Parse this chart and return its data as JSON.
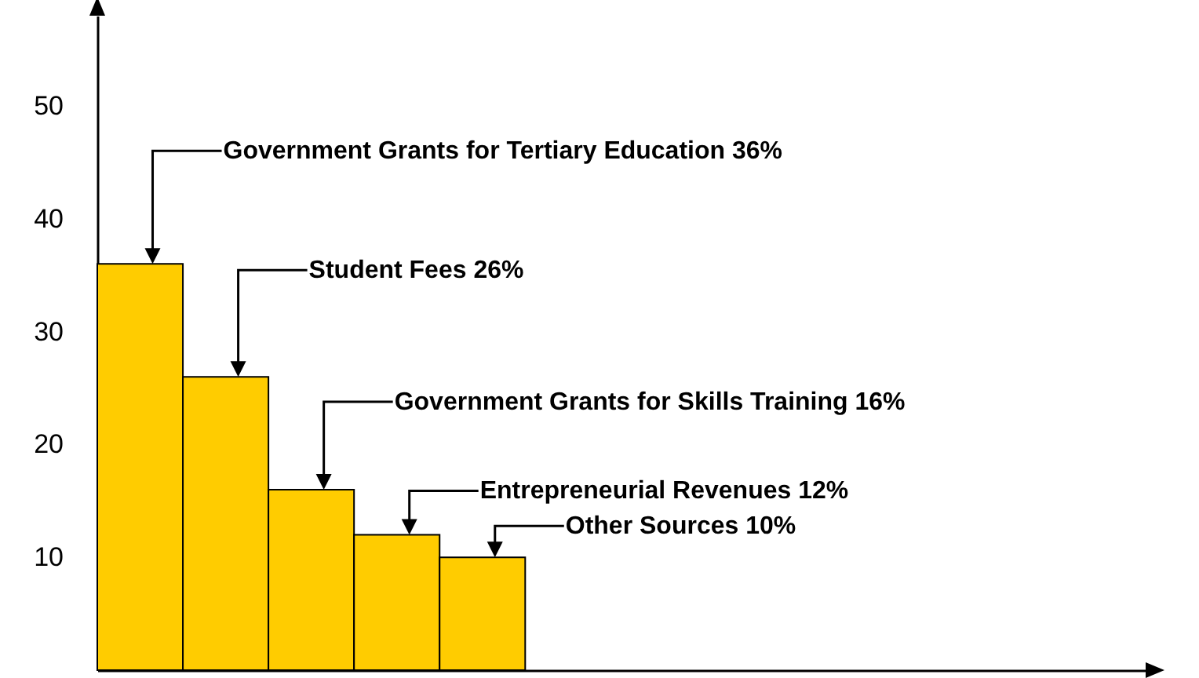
{
  "chart_data": {
    "type": "bar",
    "categories": [
      null,
      null,
      null,
      null,
      null
    ],
    "values": [
      36,
      26,
      16,
      12,
      10
    ],
    "color": "#ffcc00",
    "ylim": [
      0,
      58
    ],
    "yticks": [
      10,
      20,
      30,
      40,
      50
    ],
    "annotations": [
      "Government Grants  for Tertiary Education 36%",
      "Student Fees  26%",
      "Government Grants for Skills Training 16%",
      "Entrepreneurial Revenues 12%",
      "Other Sources  10%"
    ]
  }
}
